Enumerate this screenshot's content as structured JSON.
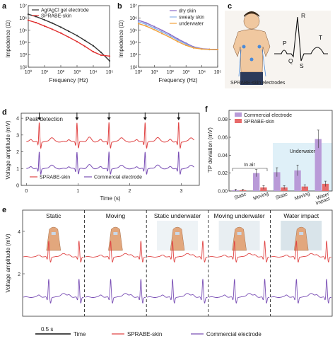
{
  "panels": {
    "a": {
      "letter": "a",
      "ylabel": "Impedence (Ω)",
      "xlabel": "Frequency (Hz)",
      "legend": [
        "Ag/AgCl gel electrode",
        "SPRABE-skin"
      ],
      "colors": [
        "#333333",
        "#e03030"
      ]
    },
    "b": {
      "letter": "b",
      "ylabel": "Impedence (Ω)",
      "xlabel": "Frequency (Hz)",
      "legend": [
        "dry skin",
        "sweaty skin",
        "underwater"
      ],
      "colors": [
        "#8a6cc8",
        "#8ab0e8",
        "#f3a13a"
      ]
    },
    "c": {
      "letter": "c",
      "caption": "SPRABE-skin electrodes",
      "waveform_labels": [
        "P",
        "Q",
        "R",
        "S",
        "T"
      ]
    },
    "d": {
      "letter": "d",
      "title": "Peak detection",
      "ylabel": "Voltage amplitude (mV)",
      "xlabel": "Time (s)",
      "legend": [
        "SPRABE-skin",
        "Commercial electrode"
      ],
      "colors": [
        "#e04545",
        "#7a4fb5"
      ]
    },
    "e": {
      "letter": "e",
      "ylabel": "Voltage amplitude (mV)",
      "conditions": [
        "Static",
        "Moving",
        "Static underwater",
        "Moving underwater",
        "Water impact"
      ],
      "scalebar": "0.5 s",
      "time_label": "Time",
      "legend": [
        "SPRABE-skin",
        "Commercial electrode"
      ]
    },
    "f": {
      "letter": "f",
      "ylabel": "TP deviation (mV)",
      "legend": [
        "Commercial electrode",
        "SPRABE-skin"
      ],
      "annotations": [
        "In air",
        "Underwater"
      ],
      "colors": [
        "#b99ad8",
        "#e86a6a"
      ]
    }
  },
  "chart_data": [
    {
      "type": "line",
      "panel": "a",
      "xlabel": "Frequency (Hz)",
      "ylabel": "Impedence (Ω)",
      "xscale": "log",
      "yscale": "log",
      "xlim": [
        1,
        100000
      ],
      "ylim": [
        100,
        10000000
      ],
      "xticks": [
        "10⁰",
        "10¹",
        "10²",
        "10³",
        "10⁴",
        "10⁵"
      ],
      "yticks": [
        "10²",
        "10³",
        "10⁴",
        "10⁵",
        "10⁶",
        "10⁷"
      ],
      "series": [
        {
          "name": "Ag/AgCl gel electrode",
          "x": [
            1,
            3,
            10,
            30,
            100,
            300,
            1000,
            3000,
            10000,
            30000,
            100000
          ],
          "values": [
            2000000,
            1300000,
            700000,
            380000,
            180000,
            85000,
            37000,
            15000,
            5500,
            1600,
            330
          ]
        },
        {
          "name": "SPRABE-skin",
          "x": [
            1,
            3,
            10,
            30,
            100,
            300,
            1000,
            3000,
            10000,
            30000,
            100000
          ],
          "values": [
            650000,
            420000,
            220000,
            120000,
            60000,
            28000,
            12000,
            5000,
            1800,
            950,
            800
          ]
        }
      ]
    },
    {
      "type": "line",
      "panel": "b",
      "xlabel": "Frequency (Hz)",
      "ylabel": "Impedence (Ω)",
      "xscale": "log",
      "yscale": "log",
      "xlim": [
        1,
        100000
      ],
      "ylim": [
        100,
        10000000
      ],
      "xticks": [
        "10⁰",
        "10¹",
        "10²",
        "10³",
        "10⁴",
        "10⁵"
      ],
      "yticks": [
        "10²",
        "10³",
        "10⁴",
        "10⁵",
        "10⁶",
        "10⁷"
      ],
      "series": [
        {
          "name": "dry skin",
          "x": [
            1,
            3,
            10,
            30,
            100,
            300,
            1000,
            3000,
            10000,
            30000,
            100000
          ],
          "values": [
            650000,
            400000,
            200000,
            100000,
            45000,
            20000,
            9000,
            4500,
            3200,
            2900,
            2800
          ]
        },
        {
          "name": "sweaty skin",
          "x": [
            1,
            3,
            10,
            30,
            100,
            300,
            1000,
            3000,
            10000,
            30000,
            100000
          ],
          "values": [
            500000,
            300000,
            150000,
            75000,
            35000,
            16000,
            7500,
            4000,
            3000,
            2700,
            2600
          ]
        },
        {
          "name": "underwater",
          "x": [
            1,
            3,
            10,
            30,
            100,
            300,
            1000,
            3000,
            10000,
            30000,
            100000
          ],
          "values": [
            350000,
            220000,
            110000,
            55000,
            26000,
            12000,
            6000,
            3700,
            3000,
            2800,
            2700
          ]
        }
      ]
    },
    {
      "type": "line",
      "panel": "d",
      "xlabel": "Time (s)",
      "ylabel": "Voltage amplitude (mV)",
      "xlim": [
        -0.1,
        3.35
      ],
      "ylim": [
        0,
        4.3
      ],
      "xticks": [
        0,
        1,
        2,
        3
      ],
      "yticks": [
        0,
        1,
        2,
        3,
        4
      ],
      "beat_times": [
        0.25,
        0.98,
        1.6,
        2.3,
        2.95
      ],
      "series": [
        {
          "name": "SPRABE-skin",
          "baseline": 2.6,
          "r_peak": 3.75
        },
        {
          "name": "Commercial electrode",
          "baseline": 1.0,
          "r_peak": 2.0
        }
      ]
    },
    {
      "type": "line",
      "panel": "e",
      "ylabel": "Voltage amplitude (mV)",
      "ylim": [
        0,
        5
      ],
      "yticks": [
        2,
        4
      ],
      "segments": [
        "Static",
        "Moving",
        "Static underwater",
        "Moving underwater",
        "Water impact"
      ],
      "series": [
        {
          "name": "SPRABE-skin",
          "baseline": 2.8,
          "r_peak": 3.55
        },
        {
          "name": "Commercial electrode",
          "baseline": 0.9,
          "r_peak": 1.75
        }
      ]
    },
    {
      "type": "bar",
      "panel": "f",
      "ylabel": "TP deviation (mV)",
      "categories": [
        "Static",
        "Moving",
        "Static",
        "Moving",
        "Water impact"
      ],
      "ylim": [
        0,
        0.09
      ],
      "yticks": [
        0.0,
        0.02,
        0.04,
        0.06,
        0.08
      ],
      "series": [
        {
          "name": "Commercial electrode",
          "values": [
            0.001,
            0.02,
            0.021,
            0.023,
            0.058
          ],
          "errors": [
            0.001,
            0.004,
            0.005,
            0.006,
            0.01
          ]
        },
        {
          "name": "SPRABE-skin",
          "values": [
            0.001,
            0.004,
            0.004,
            0.005,
            0.008
          ],
          "errors": [
            0.001,
            0.002,
            0.002,
            0.002,
            0.003
          ]
        }
      ],
      "annotations": [
        "In air",
        "Underwater"
      ]
    }
  ]
}
